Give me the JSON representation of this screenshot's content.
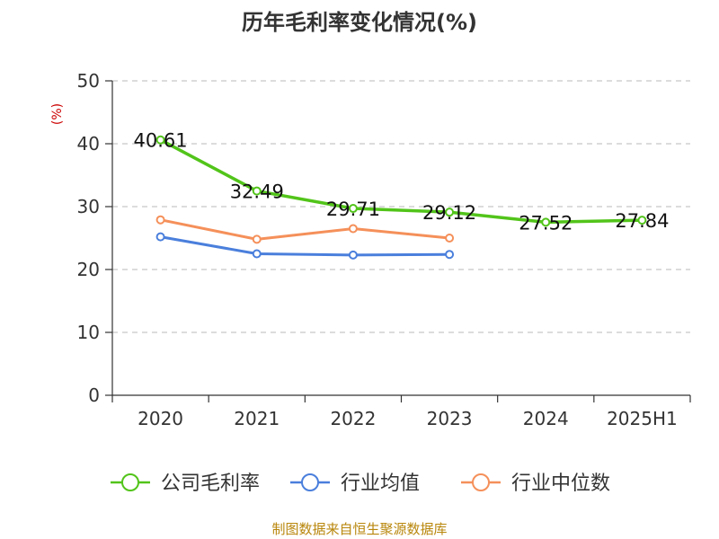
{
  "chart_data": {
    "type": "line",
    "title": "历年毛利率变化情况(%)",
    "ylabel": "(%)",
    "xlabel": "",
    "ylim": [
      0,
      50
    ],
    "yticks": [
      0,
      10,
      20,
      30,
      40,
      50
    ],
    "grid": true,
    "legend": "bottom",
    "categories": [
      "2020",
      "2021",
      "2022",
      "2023",
      "2024",
      "2025H1"
    ],
    "series": [
      {
        "name": "公司毛利率",
        "color": "#52c41a",
        "values": [
          40.61,
          32.49,
          29.71,
          29.12,
          27.52,
          27.84
        ],
        "labels": [
          "40.61",
          "32.49",
          "29.71",
          "29.12",
          "27.52",
          "27.84"
        ]
      },
      {
        "name": "行业均值",
        "color": "#4a7fdc",
        "values": [
          25.2,
          22.5,
          22.3,
          22.4,
          null,
          null
        ]
      },
      {
        "name": "行业中位数",
        "color": "#f5905a",
        "values": [
          27.9,
          24.8,
          26.5,
          25.0,
          null,
          null
        ]
      }
    ]
  },
  "source": "制图数据来自恒生聚源数据库"
}
